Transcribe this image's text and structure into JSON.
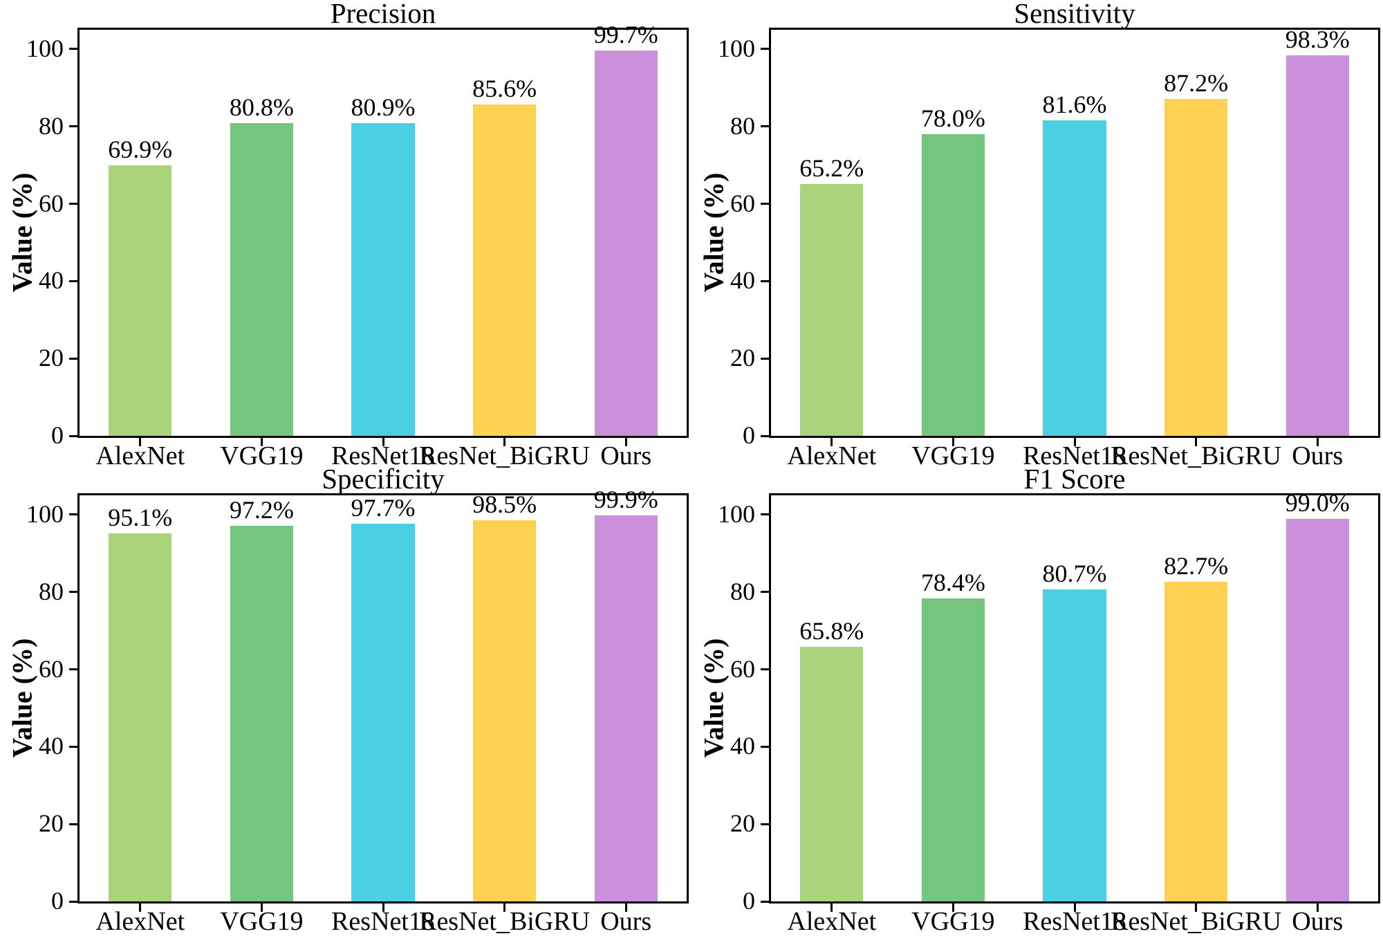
{
  "colors": {
    "bars": [
      "#a9d47b",
      "#74c57d",
      "#4ad0e2",
      "#ffd151",
      "#cb90dc"
    ],
    "axis": "#000000",
    "text": "#000000",
    "background": "#ffffff"
  },
  "chart_data": [
    {
      "type": "bar",
      "title": "Precision",
      "categories": [
        "AlexNet",
        "VGG19",
        "ResNet18",
        "ResNet_BiGRU",
        "Ours"
      ],
      "values": [
        69.9,
        80.8,
        80.9,
        85.6,
        99.7
      ],
      "value_labels": [
        "69.9%",
        "80.8%",
        "80.9%",
        "85.6%",
        "99.7%"
      ],
      "xlabel": "",
      "ylabel": "Value (%)",
      "ylim": [
        0,
        105
      ],
      "yticks": [
        0,
        20,
        40,
        60,
        80,
        100
      ],
      "grid": false,
      "legend": "none"
    },
    {
      "type": "bar",
      "title": "Sensitivity",
      "categories": [
        "AlexNet",
        "VGG19",
        "ResNet18",
        "ResNet_BiGRU",
        "Ours"
      ],
      "values": [
        65.2,
        78.0,
        81.6,
        87.2,
        98.3
      ],
      "value_labels": [
        "65.2%",
        "78.0%",
        "81.6%",
        "87.2%",
        "98.3%"
      ],
      "xlabel": "",
      "ylabel": "Value (%)",
      "ylim": [
        0,
        105
      ],
      "yticks": [
        0,
        20,
        40,
        60,
        80,
        100
      ],
      "grid": false,
      "legend": "none"
    },
    {
      "type": "bar",
      "title": "Specificity",
      "categories": [
        "AlexNet",
        "VGG19",
        "ResNet18",
        "ResNet_BiGRU",
        "Ours"
      ],
      "values": [
        95.1,
        97.2,
        97.7,
        98.5,
        99.9
      ],
      "value_labels": [
        "95.1%",
        "97.2%",
        "97.7%",
        "98.5%",
        "99.9%"
      ],
      "xlabel": "",
      "ylabel": "Value (%)",
      "ylim": [
        0,
        105
      ],
      "yticks": [
        0,
        20,
        40,
        60,
        80,
        100
      ],
      "grid": false,
      "legend": "none"
    },
    {
      "type": "bar",
      "title": "F1 Score",
      "categories": [
        "AlexNet",
        "VGG19",
        "ResNet18",
        "ResNet_BiGRU",
        "Ours"
      ],
      "values": [
        65.8,
        78.4,
        80.7,
        82.7,
        99.0
      ],
      "value_labels": [
        "65.8%",
        "78.4%",
        "80.7%",
        "82.7%",
        "99.0%"
      ],
      "xlabel": "",
      "ylabel": "Value (%)",
      "ylim": [
        0,
        105
      ],
      "yticks": [
        0,
        20,
        40,
        60,
        80,
        100
      ],
      "grid": false,
      "legend": "none"
    }
  ]
}
